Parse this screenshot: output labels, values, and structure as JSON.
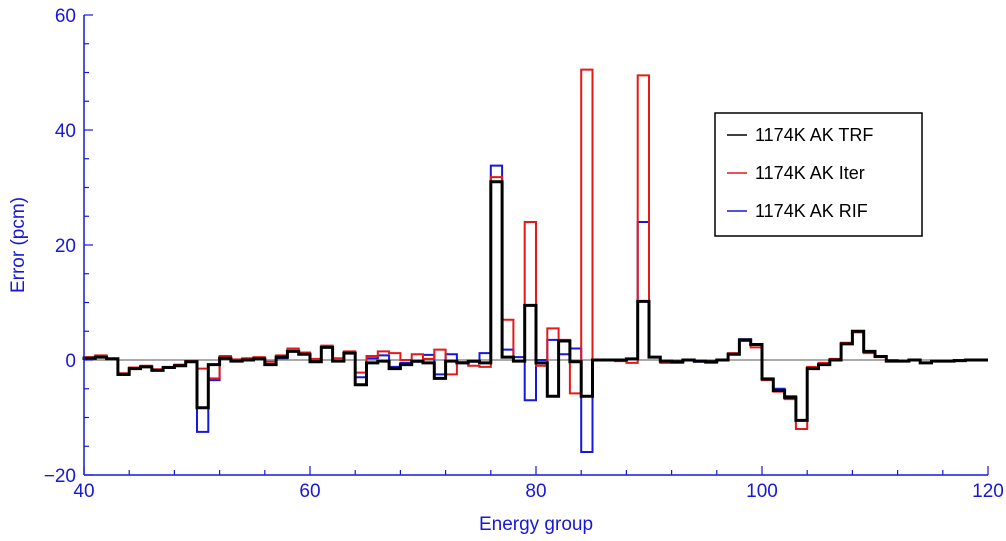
{
  "chart_data": {
    "type": "line",
    "step": true,
    "xlabel": "Energy group",
    "ylabel": "Error (pcm)",
    "xlim": [
      40,
      120
    ],
    "ylim": [
      -20,
      60
    ],
    "xticks": [
      40,
      60,
      80,
      100,
      120
    ],
    "yticks": [
      -20,
      0,
      20,
      40,
      60
    ],
    "ytick_labels": [
      "−20",
      "0",
      "20",
      "40",
      "60"
    ],
    "grid": false,
    "zero_line": true,
    "legend_position": "upper-right",
    "axis_color": "#1818d8",
    "x": [
      41,
      42,
      43,
      44,
      45,
      46,
      47,
      48,
      49,
      50,
      51,
      52,
      53,
      54,
      55,
      56,
      57,
      58,
      59,
      60,
      61,
      62,
      63,
      64,
      65,
      66,
      67,
      68,
      69,
      70,
      71,
      72,
      73,
      74,
      75,
      76,
      77,
      78,
      79,
      80,
      81,
      82,
      83,
      84,
      85,
      86,
      87,
      88,
      89,
      90,
      91,
      92,
      93,
      94,
      95,
      96,
      97,
      98,
      99,
      100,
      101,
      102,
      103,
      104,
      105,
      106,
      107,
      108,
      109,
      110,
      111,
      112,
      113,
      114,
      115,
      116,
      117,
      118,
      119,
      120
    ],
    "series": [
      {
        "name": "1174K AK TRF",
        "color": "#000000",
        "width": 3,
        "values": [
          0.3,
          0.5,
          0.2,
          -2.5,
          -1.5,
          -1.2,
          -1.8,
          -1.3,
          -1.0,
          -0.3,
          -8.3,
          -0.8,
          0.3,
          -0.2,
          0.0,
          0.2,
          -0.8,
          0.5,
          1.5,
          1.0,
          -0.3,
          2.2,
          -0.2,
          1.2,
          -4.3,
          -0.5,
          -0.2,
          -1.5,
          -0.8,
          -0.2,
          -0.5,
          -3.2,
          -0.2,
          -0.5,
          -0.2,
          -0.5,
          31.0,
          0.5,
          -0.2,
          9.5,
          -0.5,
          -6.3,
          3.3,
          -0.3,
          -6.3,
          0.0,
          0.0,
          0.0,
          0.2,
          10.2,
          0.5,
          -0.2,
          -0.3,
          0.0,
          -0.2,
          -0.3,
          0.0,
          1.0,
          3.5,
          2.7,
          -3.3,
          -5.3,
          -6.5,
          -10.5,
          -1.5,
          -0.8,
          0.0,
          2.8,
          5.0,
          1.5,
          0.6,
          -0.2,
          -0.2,
          0.0,
          -0.5,
          -0.2,
          -0.2,
          -0.1,
          0.0,
          0.0
        ]
      },
      {
        "name": "1174K AK Iter",
        "color": "#e41a1a",
        "width": 2,
        "values": [
          0.5,
          0.8,
          0.3,
          -2.3,
          -1.3,
          -1.0,
          -1.6,
          -1.2,
          -0.8,
          -0.2,
          -1.5,
          -3.2,
          0.7,
          0.1,
          0.3,
          0.5,
          -0.3,
          0.8,
          2.0,
          1.3,
          0.2,
          2.5,
          0.3,
          1.5,
          -2.2,
          0.7,
          1.5,
          1.2,
          0.0,
          1.0,
          0.2,
          1.8,
          -2.5,
          -0.5,
          -1.0,
          -1.2,
          31.8,
          7.0,
          -0.2,
          24.0,
          -1.0,
          5.5,
          3.5,
          -5.8,
          50.5,
          0.0,
          0.0,
          -0.2,
          -0.5,
          49.5,
          0.5,
          -0.5,
          -0.5,
          0.0,
          -0.2,
          -0.5,
          0.0,
          1.2,
          3.3,
          2.2,
          -3.5,
          -5.5,
          -6.8,
          -12.0,
          -1.2,
          -0.5,
          0.2,
          3.0,
          4.8,
          1.2,
          0.5,
          0.0,
          -0.2,
          0.0,
          -0.5,
          -0.2,
          -0.2,
          0.0,
          0.0,
          0.0
        ]
      },
      {
        "name": "1174K AK RIF",
        "color": "#1818d8",
        "width": 2,
        "values": [
          0.4,
          0.6,
          0.2,
          -2.6,
          -1.5,
          -1.2,
          -1.7,
          -1.3,
          -0.9,
          -0.3,
          -12.5,
          -3.5,
          0.5,
          -0.1,
          0.0,
          0.2,
          -0.7,
          0.3,
          1.6,
          1.0,
          -0.3,
          2.3,
          -0.1,
          1.2,
          -3.0,
          0.3,
          0.8,
          -1.2,
          -0.5,
          -0.3,
          0.9,
          -2.5,
          1.0,
          -0.4,
          -0.3,
          1.2,
          33.8,
          1.8,
          0.5,
          -7.0,
          0.0,
          3.5,
          1.0,
          2.0,
          -16.0,
          0.0,
          0.0,
          0.0,
          0.2,
          24.0,
          0.5,
          -0.3,
          -0.4,
          0.0,
          -0.3,
          -0.4,
          0.0,
          1.1,
          3.6,
          2.7,
          -3.2,
          -5.0,
          -6.3,
          -10.5,
          -1.3,
          -0.7,
          0.0,
          2.9,
          5.0,
          1.4,
          0.6,
          -0.2,
          -0.2,
          0.0,
          -0.5,
          -0.2,
          -0.2,
          -0.1,
          0.0,
          0.0
        ]
      }
    ]
  }
}
